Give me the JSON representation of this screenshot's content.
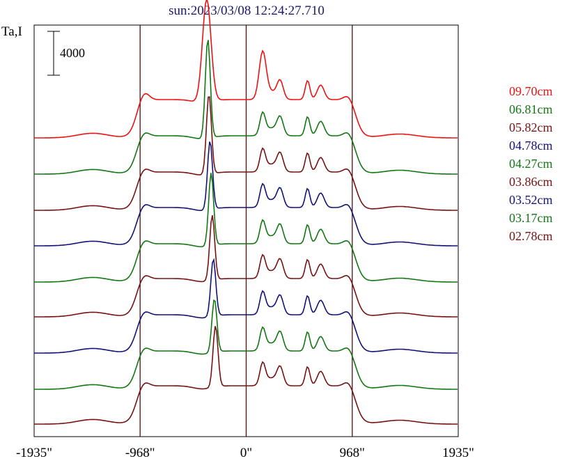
{
  "chart_data": {
    "type": "line",
    "title": "sun:2023/03/08 12:24:27.710",
    "ylabel": "Ta,I",
    "scale_bar_label": "4000",
    "scale_bar_value": 4000,
    "xlim": [
      -1935,
      1935
    ],
    "x_ticks": [
      {
        "value": -1935,
        "label": "-1935\""
      },
      {
        "value": -968,
        "label": "-968\""
      },
      {
        "value": 0,
        "label": "0\""
      },
      {
        "value": 968,
        "label": "968\""
      },
      {
        "value": 1935,
        "label": "1935\""
      }
    ],
    "vertical_lines": [
      -968,
      0,
      968
    ],
    "grid": false,
    "legend_position": "right",
    "series": [
      {
        "name": "09.70cm",
        "color": "#ee1111"
      },
      {
        "name": "06.81cm",
        "color": "#117711"
      },
      {
        "name": "05.82cm",
        "color": "#771111"
      },
      {
        "name": "04.78cm",
        "color": "#111177"
      },
      {
        "name": "04.27cm",
        "color": "#117711"
      },
      {
        "name": "03.86cm",
        "color": "#771111"
      },
      {
        "name": "03.52cm",
        "color": "#111177"
      },
      {
        "name": "03.17cm",
        "color": "#117711"
      },
      {
        "name": "02.78cm",
        "color": "#771111"
      }
    ]
  }
}
